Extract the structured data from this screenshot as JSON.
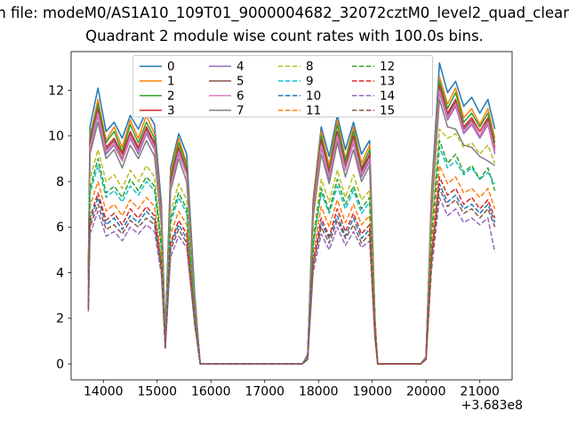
{
  "figure": {
    "title_line1": "n file: modeM0/AS1A10_109T01_9000004682_32072cztM0_level2_quad_clean",
    "title_line2": "Quadrant 2 module wise count rates with 100.0s bins.",
    "x_offset_label": "+3.683e8",
    "background_color": "#ffffff"
  },
  "chart_data": {
    "type": "line",
    "title": "Quadrant 2 module wise count rates with 100.0s bins.",
    "xlabel": "",
    "ylabel": "",
    "x_offset": 368300000,
    "xlim": [
      13400,
      21600
    ],
    "ylim": [
      -0.7,
      13.7
    ],
    "x_ticks": [
      14000,
      15000,
      16000,
      17000,
      18000,
      19000,
      20000,
      21000
    ],
    "y_ticks": [
      0,
      2,
      4,
      6,
      8,
      10,
      12
    ],
    "grid": false,
    "legend_position": "upper center",
    "x": [
      13720,
      13750,
      13900,
      14050,
      14200,
      14350,
      14500,
      14650,
      14800,
      14950,
      15080,
      15150,
      15250,
      15400,
      15550,
      15700,
      15800,
      16400,
      17200,
      17700,
      17800,
      17900,
      18050,
      18200,
      18350,
      18500,
      18650,
      18800,
      18950,
      19050,
      19100,
      19500,
      19900,
      20000,
      20100,
      20250,
      20400,
      20550,
      20700,
      20850,
      21000,
      21150,
      21280
    ],
    "series": [
      {
        "name": "0",
        "color": "#1f77b4",
        "dashed": false,
        "values": [
          4.2,
          10.4,
          12.1,
          10.2,
          10.6,
          9.9,
          10.9,
          10.3,
          11.1,
          10.5,
          7.0,
          1.2,
          8.6,
          10.1,
          9.2,
          3.0,
          0,
          0,
          0,
          0,
          0.4,
          7.2,
          10.4,
          9.1,
          10.9,
          9.4,
          10.6,
          9.2,
          9.8,
          2.0,
          0,
          0,
          0,
          0.3,
          7.5,
          13.2,
          11.9,
          12.4,
          11.3,
          11.7,
          11.0,
          11.6,
          10.3
        ]
      },
      {
        "name": "1",
        "color": "#ff7f0e",
        "dashed": false,
        "values": [
          4.1,
          10.0,
          11.6,
          9.8,
          10.4,
          9.5,
          10.7,
          9.9,
          10.9,
          10.1,
          6.7,
          1.1,
          8.4,
          9.9,
          8.8,
          2.8,
          0,
          0,
          0,
          0,
          0.4,
          7.1,
          10.2,
          8.7,
          10.7,
          9.0,
          10.4,
          8.8,
          9.6,
          1.9,
          0,
          0,
          0,
          0.3,
          7.4,
          12.6,
          11.4,
          12.1,
          10.8,
          11.2,
          10.5,
          11.2,
          9.9
        ]
      },
      {
        "name": "2",
        "color": "#2ca02c",
        "dashed": false,
        "values": [
          4.0,
          9.9,
          11.4,
          9.7,
          10.2,
          9.3,
          10.5,
          9.7,
          10.6,
          9.9,
          6.6,
          1.1,
          8.2,
          9.7,
          8.7,
          2.9,
          0,
          0,
          0,
          0,
          0.4,
          6.9,
          10.0,
          8.5,
          10.5,
          8.9,
          10.2,
          8.6,
          9.4,
          1.9,
          0,
          0,
          0,
          0.3,
          7.2,
          12.4,
          11.2,
          11.9,
          10.6,
          11.0,
          10.4,
          11.0,
          9.7
        ]
      },
      {
        "name": "3",
        "color": "#d62728",
        "dashed": false,
        "values": [
          3.9,
          9.7,
          11.2,
          9.5,
          9.9,
          9.2,
          10.2,
          9.5,
          10.4,
          9.7,
          6.5,
          1.1,
          8.0,
          9.5,
          8.5,
          2.8,
          0,
          0,
          0,
          0,
          0.4,
          6.8,
          9.8,
          8.4,
          10.2,
          8.7,
          10.0,
          8.5,
          9.2,
          1.8,
          0,
          0,
          0,
          0.3,
          7.0,
          12.2,
          11.0,
          11.6,
          10.4,
          10.8,
          10.2,
          10.8,
          9.5
        ]
      },
      {
        "name": "4",
        "color": "#9467bd",
        "dashed": false,
        "values": [
          3.8,
          9.4,
          10.9,
          9.2,
          9.6,
          8.9,
          9.9,
          9.2,
          10.1,
          9.4,
          6.3,
          1.0,
          7.8,
          9.2,
          8.3,
          2.7,
          0,
          0,
          0,
          0,
          0.4,
          6.6,
          9.5,
          8.1,
          9.9,
          8.5,
          9.7,
          8.2,
          8.9,
          1.8,
          0,
          0,
          0,
          0.3,
          6.8,
          11.9,
          10.7,
          11.3,
          10.1,
          10.5,
          9.9,
          10.5,
          9.2
        ]
      },
      {
        "name": "5",
        "color": "#8c564b",
        "dashed": false,
        "values": [
          3.9,
          9.6,
          11.1,
          9.4,
          9.8,
          9.0,
          10.1,
          9.4,
          10.3,
          9.6,
          6.4,
          1.1,
          7.9,
          9.4,
          8.4,
          2.8,
          0,
          0,
          0,
          0,
          0.4,
          6.7,
          9.7,
          8.3,
          10.1,
          8.6,
          9.9,
          8.4,
          9.1,
          1.8,
          0,
          0,
          0,
          0.3,
          6.9,
          12.1,
          10.9,
          11.5,
          10.3,
          10.7,
          10.0,
          10.7,
          9.4
        ]
      },
      {
        "name": "6",
        "color": "#e377c2",
        "dashed": false,
        "values": [
          3.8,
          9.5,
          11.0,
          9.3,
          9.7,
          8.9,
          10.0,
          9.3,
          10.2,
          9.5,
          6.3,
          1.1,
          7.8,
          9.3,
          8.3,
          2.7,
          0,
          0,
          0,
          0,
          0.4,
          6.6,
          9.6,
          8.2,
          10.0,
          8.5,
          9.8,
          8.3,
          9.0,
          1.8,
          0,
          0,
          0,
          0.3,
          6.9,
          12.0,
          10.8,
          11.4,
          10.2,
          10.6,
          10.0,
          10.6,
          9.3
        ]
      },
      {
        "name": "7",
        "color": "#7f7f7f",
        "dashed": false,
        "values": [
          3.7,
          9.2,
          10.6,
          9.0,
          9.4,
          8.6,
          9.6,
          9.0,
          9.8,
          9.1,
          6.1,
          1.0,
          7.6,
          9.0,
          8.0,
          2.6,
          0,
          0,
          0,
          0,
          0.4,
          6.4,
          9.2,
          7.9,
          9.7,
          8.2,
          9.4,
          8.0,
          8.7,
          1.7,
          0,
          0,
          0,
          0.3,
          6.6,
          11.6,
          10.4,
          10.3,
          9.6,
          9.5,
          9.1,
          8.9,
          8.7
        ]
      },
      {
        "name": "8",
        "color": "#bcbd22",
        "dashed": true,
        "values": [
          3.3,
          8.1,
          9.4,
          8.0,
          8.3,
          7.7,
          8.5,
          8.0,
          8.7,
          8.2,
          5.5,
          0.9,
          6.7,
          7.9,
          7.2,
          2.3,
          0,
          0,
          0,
          0,
          0.3,
          5.6,
          8.1,
          7.1,
          8.5,
          7.3,
          8.3,
          7.2,
          7.6,
          1.6,
          0,
          0,
          0,
          0.2,
          5.9,
          10.3,
          9.9,
          10.1,
          9.5,
          9.7,
          9.2,
          9.6,
          8.8
        ]
      },
      {
        "name": "9",
        "color": "#17becf",
        "dashed": true,
        "values": [
          3.0,
          7.5,
          8.7,
          7.3,
          7.6,
          7.1,
          7.8,
          7.4,
          8.0,
          7.6,
          5.0,
          0.9,
          6.2,
          7.3,
          6.6,
          2.2,
          0,
          0,
          0,
          0,
          0.3,
          5.2,
          7.5,
          6.6,
          7.8,
          6.8,
          7.6,
          6.6,
          7.1,
          1.4,
          0,
          0,
          0,
          0.2,
          5.4,
          9.5,
          8.6,
          8.9,
          8.3,
          8.6,
          8.1,
          8.4,
          7.9
        ]
      },
      {
        "name": "10",
        "color": "#1f77b4",
        "dashed": true,
        "values": [
          2.5,
          6.2,
          7.3,
          6.1,
          6.4,
          5.9,
          6.5,
          6.2,
          6.7,
          6.3,
          4.2,
          0.7,
          5.2,
          6.1,
          5.5,
          1.8,
          0,
          0,
          0,
          0,
          0.2,
          4.3,
          6.2,
          5.5,
          6.5,
          5.6,
          6.4,
          5.5,
          5.9,
          1.2,
          0,
          0,
          0,
          0.2,
          4.5,
          7.9,
          7.1,
          7.4,
          6.8,
          7.0,
          6.6,
          7.0,
          6.2
        ]
      },
      {
        "name": "11",
        "color": "#ff7f0e",
        "dashed": true,
        "values": [
          2.8,
          6.9,
          8.0,
          6.7,
          7.0,
          6.5,
          7.2,
          6.8,
          7.3,
          6.9,
          4.6,
          0.8,
          5.7,
          6.7,
          6.1,
          2.0,
          0,
          0,
          0,
          0,
          0.3,
          4.8,
          6.9,
          6.0,
          7.2,
          6.2,
          7.0,
          6.1,
          6.5,
          1.3,
          0,
          0,
          0,
          0.2,
          5.0,
          8.7,
          7.9,
          8.2,
          7.5,
          7.7,
          7.3,
          7.7,
          6.8
        ]
      },
      {
        "name": "12",
        "color": "#2ca02c",
        "dashed": true,
        "values": [
          3.1,
          7.7,
          9.0,
          7.5,
          7.8,
          7.3,
          8.1,
          7.6,
          8.2,
          7.8,
          5.2,
          0.9,
          6.4,
          7.5,
          6.8,
          2.2,
          0,
          0,
          0,
          0,
          0.3,
          5.3,
          7.7,
          6.7,
          8.1,
          7.0,
          7.8,
          6.8,
          7.3,
          1.5,
          0,
          0,
          0,
          0.2,
          5.6,
          9.8,
          8.8,
          9.2,
          8.4,
          8.7,
          8.1,
          8.6,
          7.6
        ]
      },
      {
        "name": "13",
        "color": "#d62728",
        "dashed": true,
        "values": [
          2.6,
          6.4,
          7.5,
          6.3,
          6.6,
          6.1,
          6.8,
          6.4,
          6.9,
          6.5,
          4.3,
          0.7,
          5.3,
          6.3,
          5.7,
          1.9,
          0,
          0,
          0,
          0,
          0.2,
          4.5,
          6.4,
          5.6,
          6.8,
          5.8,
          6.6,
          5.7,
          6.1,
          1.2,
          0,
          0,
          0,
          0.2,
          4.7,
          8.2,
          7.4,
          7.7,
          7.0,
          7.3,
          6.8,
          7.2,
          6.4
        ]
      },
      {
        "name": "14",
        "color": "#9467bd",
        "dashed": true,
        "values": [
          2.3,
          5.7,
          6.7,
          5.6,
          5.8,
          5.4,
          6.0,
          5.7,
          6.1,
          5.8,
          3.9,
          0.7,
          4.7,
          5.6,
          5.1,
          1.7,
          0,
          0,
          0,
          0,
          0.2,
          4.0,
          5.7,
          5.0,
          6.0,
          5.2,
          5.8,
          5.1,
          5.4,
          1.1,
          0,
          0,
          0,
          0.2,
          4.1,
          7.3,
          6.5,
          6.8,
          6.2,
          6.4,
          6.1,
          6.4,
          4.9
        ]
      },
      {
        "name": "15",
        "color": "#8c564b",
        "dashed": true,
        "values": [
          2.4,
          6.0,
          7.0,
          5.9,
          6.1,
          5.7,
          6.3,
          6.0,
          6.4,
          6.1,
          4.1,
          0.7,
          5.0,
          5.9,
          5.3,
          1.7,
          0,
          0,
          0,
          0,
          0.2,
          4.3,
          6.0,
          5.3,
          6.3,
          5.5,
          6.1,
          5.3,
          5.7,
          1.2,
          0,
          0,
          0,
          0.2,
          4.4,
          7.7,
          6.9,
          7.2,
          6.6,
          6.8,
          6.4,
          6.8,
          6.0
        ]
      }
    ]
  }
}
